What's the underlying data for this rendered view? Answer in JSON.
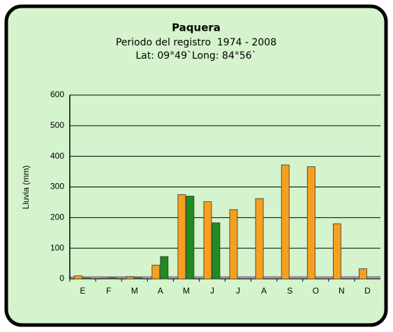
{
  "chart_data": {
    "type": "bar",
    "title": "Paquera",
    "subtitle": [
      "Periodo del registro  1974 - 2008",
      "Lat: 09°49`Long: 84°56`"
    ],
    "y_label": "Lluvia (mm)",
    "categories": [
      "E",
      "F",
      "M",
      "A",
      "M",
      "J",
      "J",
      "A",
      "S",
      "O",
      "N",
      "D"
    ],
    "series": [
      {
        "color": "#f5a020",
        "values": [
          10,
          2,
          7,
          45,
          275,
          252,
          226,
          262,
          372,
          366,
          180,
          33
        ]
      },
      {
        "color": "#1e8c1e",
        "values": [
          3,
          4,
          4,
          73,
          270,
          183,
          null,
          null,
          null,
          null,
          null,
          null
        ]
      }
    ],
    "ylim": [
      0,
      600
    ],
    "yticks": [
      0,
      100,
      200,
      300,
      400,
      500,
      600
    ],
    "grid": true
  }
}
